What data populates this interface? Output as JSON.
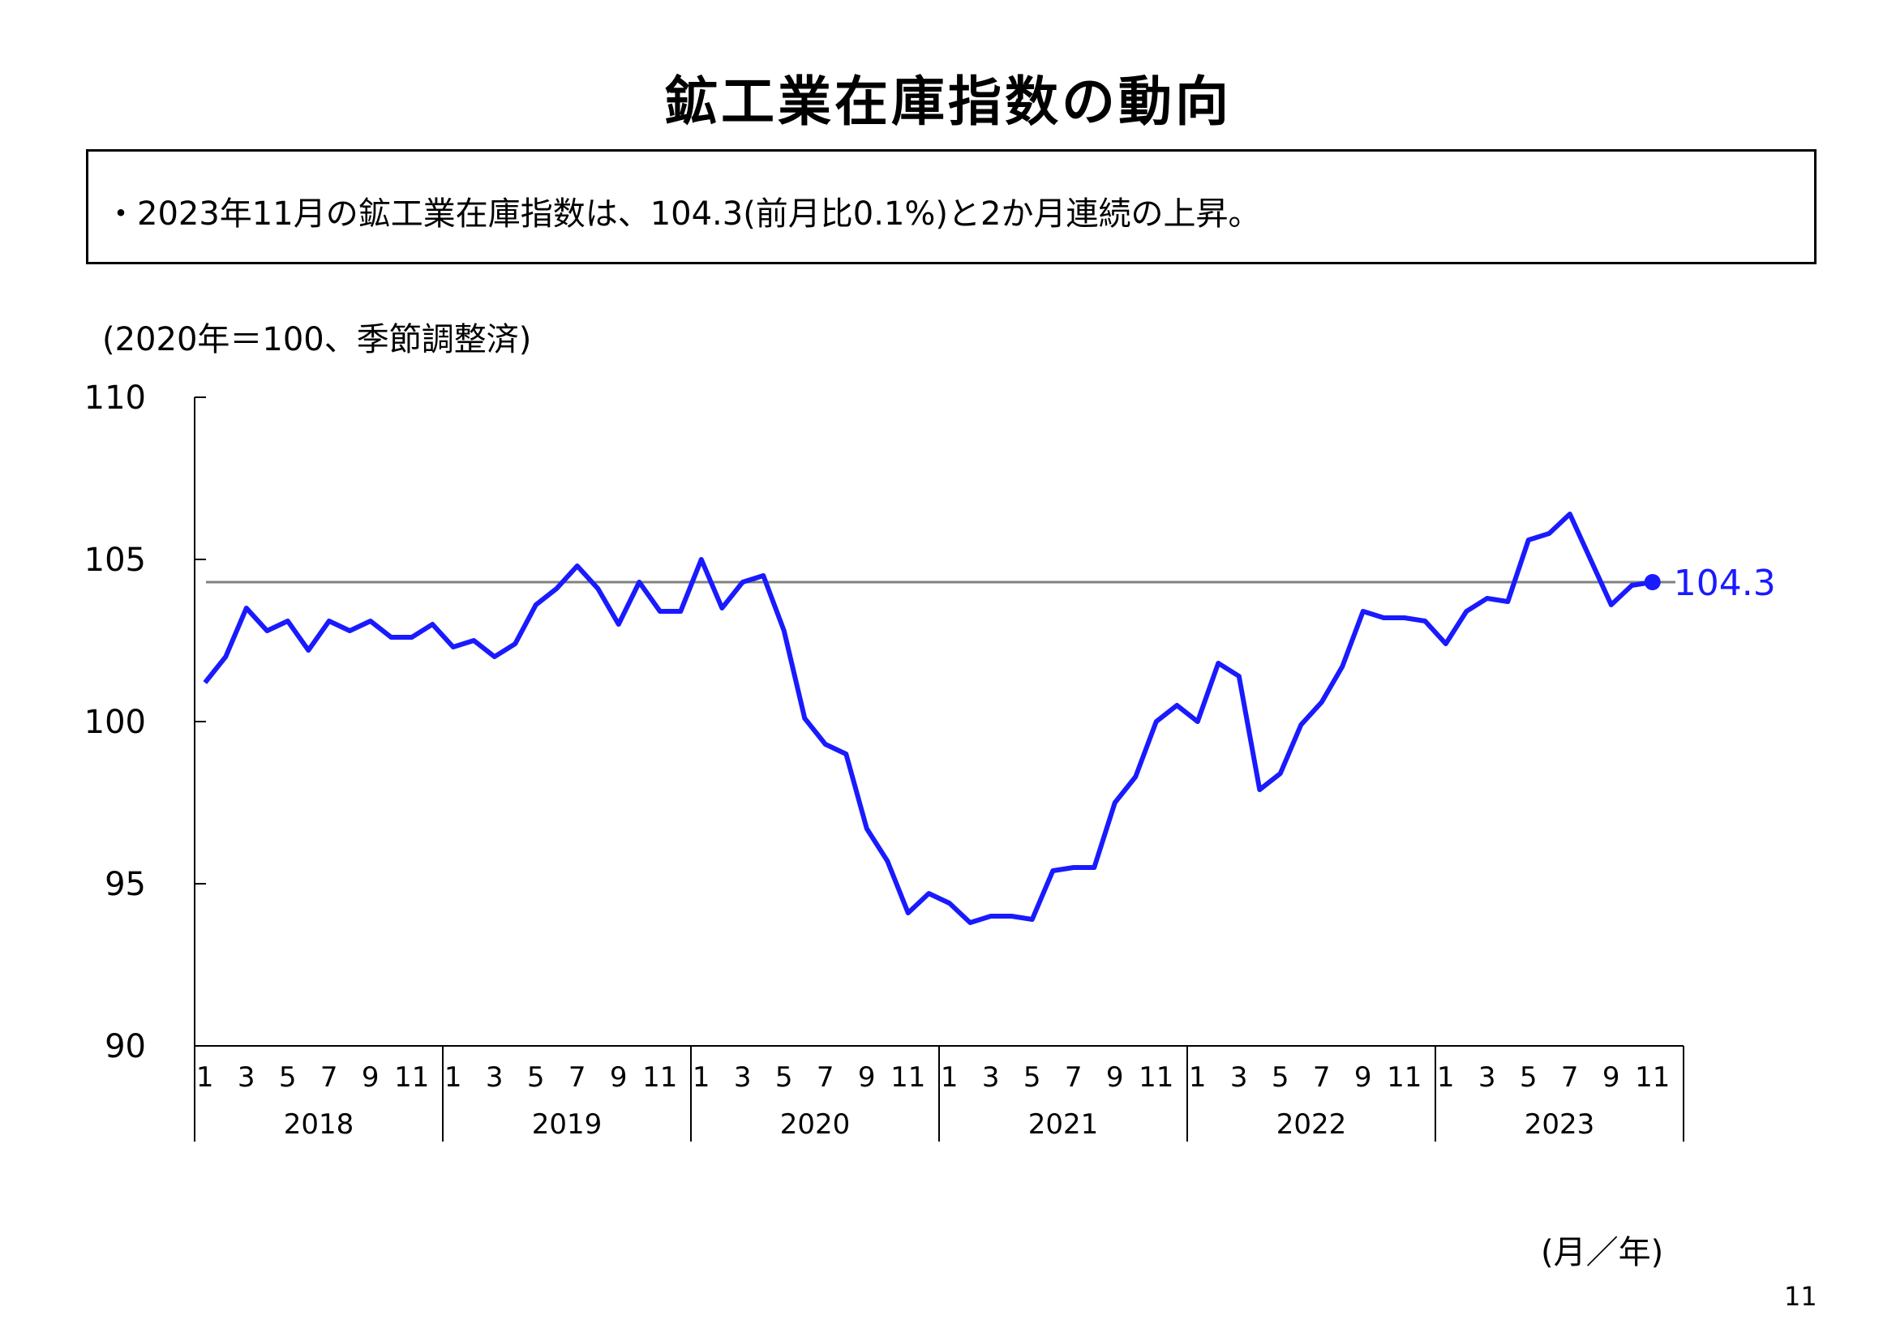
{
  "title": "鉱工業在庫指数の動向",
  "summary": "・2023年11月の鉱工業在庫指数は、104.3(前月比0.1%)と2か月連続の上昇。",
  "note": "(2020年＝100、季節調整済)",
  "axis_unit_label": "(月／年)",
  "page_number": "11",
  "chart_data": {
    "type": "line",
    "title": "",
    "xlabel": "(月／年)",
    "ylabel": "",
    "ylim": [
      90,
      110
    ],
    "yticks": [
      90,
      95,
      100,
      105,
      110
    ],
    "years": [
      "2018",
      "2019",
      "2020",
      "2021",
      "2022",
      "2023"
    ],
    "month_ticks": [
      "1",
      "3",
      "5",
      "7",
      "9",
      "11"
    ],
    "grid": false,
    "series": [
      {
        "name": "",
        "color": "#1a1aff",
        "start": "2018-01",
        "values": [
          101.2,
          102.0,
          103.5,
          102.8,
          103.1,
          102.2,
          103.1,
          102.8,
          103.1,
          102.6,
          102.6,
          103.0,
          102.3,
          102.5,
          102.0,
          102.4,
          103.6,
          104.1,
          104.8,
          104.1,
          103.0,
          104.3,
          103.4,
          103.4,
          105.0,
          103.5,
          104.3,
          104.5,
          102.8,
          100.1,
          99.3,
          99.0,
          96.7,
          95.7,
          94.1,
          94.7,
          94.4,
          93.8,
          94.0,
          94.0,
          93.9,
          95.4,
          95.5,
          95.5,
          97.5,
          98.3,
          100.0,
          100.5,
          100.0,
          101.8,
          101.4,
          97.9,
          98.4,
          99.9,
          100.6,
          101.7,
          103.4,
          103.2,
          103.2,
          103.1,
          102.4,
          103.4,
          103.8,
          103.7,
          105.6,
          105.8,
          106.4,
          105.0,
          103.6,
          104.2,
          104.3
        ]
      }
    ],
    "reference_line": {
      "value": 104.3,
      "color": "#808080"
    },
    "latest_label": "104.3",
    "latest_color": "#1a1aff"
  }
}
